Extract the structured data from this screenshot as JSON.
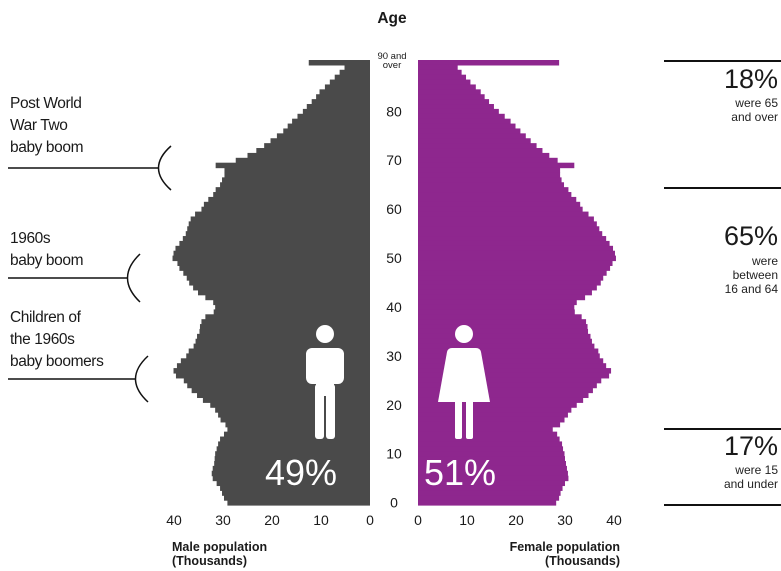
{
  "chart_data": {
    "type": "bar",
    "orientation": "horizontal",
    "title": "Age",
    "age_top_label": "90 and over",
    "y_ticks": [
      "0",
      "10",
      "20",
      "30",
      "40",
      "50",
      "60",
      "70",
      "80"
    ],
    "ages": [
      90,
      89,
      88,
      87,
      86,
      85,
      84,
      83,
      82,
      81,
      80,
      79,
      78,
      77,
      76,
      75,
      74,
      73,
      72,
      71,
      70,
      69,
      68,
      67,
      66,
      65,
      64,
      63,
      62,
      61,
      60,
      59,
      58,
      57,
      56,
      55,
      54,
      53,
      52,
      51,
      50,
      49,
      48,
      47,
      46,
      45,
      44,
      43,
      42,
      41,
      40,
      39,
      38,
      37,
      36,
      35,
      34,
      33,
      32,
      31,
      30,
      29,
      28,
      27,
      26,
      25,
      24,
      23,
      22,
      21,
      20,
      19,
      18,
      17,
      16,
      15,
      14,
      13,
      12,
      11,
      10,
      9,
      8,
      7,
      6,
      5,
      4,
      3,
      2,
      1,
      0
    ],
    "series": [
      {
        "name": "Male population (Thousands)",
        "color": "#4a4a4a",
        "values": [
          12.5,
          5.2,
          6.2,
          7.2,
          8.2,
          9.2,
          10.3,
          11.0,
          11.9,
          12.9,
          13.7,
          14.8,
          15.9,
          16.8,
          17.7,
          19.0,
          20.3,
          21.6,
          23.2,
          25.0,
          27.4,
          31.5,
          29.7,
          29.7,
          30.2,
          30.6,
          31.5,
          32.0,
          33.0,
          33.9,
          34.4,
          35.7,
          36.6,
          37.0,
          37.3,
          37.6,
          38.2,
          38.9,
          39.7,
          40.1,
          40.3,
          39.3,
          38.9,
          38.1,
          37.4,
          36.9,
          36.1,
          35.1,
          33.6,
          32.0,
          31.6,
          31.9,
          33.6,
          34.4,
          34.7,
          34.8,
          35.3,
          35.6,
          36.0,
          37.0,
          37.5,
          38.6,
          39.4,
          40.1,
          39.6,
          38.0,
          37.3,
          36.4,
          35.3,
          34.1,
          32.6,
          31.6,
          31.0,
          30.5,
          29.5,
          29.1,
          29.8,
          30.6,
          31.0,
          31.3,
          31.6,
          31.7,
          31.8,
          32.1,
          32.3,
          32.1,
          31.3,
          30.6,
          30.2,
          29.8,
          29.1
        ]
      },
      {
        "name": "Female population (Thousands)",
        "color": "#8e278e",
        "values": [
          28.8,
          8.1,
          8.9,
          9.8,
          10.7,
          11.8,
          12.8,
          13.6,
          14.5,
          15.5,
          16.5,
          17.7,
          18.9,
          19.9,
          20.9,
          22.0,
          23.0,
          24.2,
          25.4,
          26.8,
          28.5,
          31.9,
          29.0,
          29.0,
          29.3,
          29.8,
          30.7,
          31.3,
          32.3,
          33.1,
          33.6,
          34.8,
          35.9,
          36.5,
          37.0,
          37.6,
          38.4,
          39.1,
          39.8,
          40.2,
          40.4,
          39.7,
          39.2,
          38.5,
          37.8,
          37.3,
          36.5,
          35.5,
          34.1,
          32.4,
          31.9,
          32.0,
          33.4,
          34.3,
          34.6,
          34.7,
          35.2,
          35.5,
          36.0,
          36.8,
          37.1,
          37.8,
          38.4,
          39.4,
          39.0,
          37.4,
          36.5,
          35.7,
          34.8,
          33.7,
          32.4,
          31.3,
          30.6,
          29.9,
          29.0,
          27.5,
          28.4,
          28.9,
          29.4,
          29.6,
          29.9,
          30.0,
          30.2,
          30.4,
          30.6,
          30.7,
          30.0,
          29.5,
          29.1,
          28.8,
          28.2
        ]
      }
    ],
    "xlim": [
      0,
      40
    ],
    "x_ticks_male": [
      "40",
      "30",
      "20",
      "10",
      "0"
    ],
    "x_ticks_female": [
      "0",
      "10",
      "20",
      "30",
      "40"
    ],
    "xlabel_male": [
      "Male population",
      "(Thousands)"
    ],
    "xlabel_female": [
      "Female population",
      "(Thousands)"
    ]
  },
  "overlays": {
    "male_percent": "49%",
    "female_percent": "51%",
    "male_icon": "man-icon",
    "female_icon": "woman-icon"
  },
  "annotations": [
    {
      "lines": [
        "Post World",
        "War Two",
        "baby boom"
      ]
    },
    {
      "lines": [
        "1960s",
        "baby boom"
      ]
    },
    {
      "lines": [
        "Children of",
        "the 1960s",
        "baby boomers"
      ]
    }
  ],
  "stats": [
    {
      "percent": "18%",
      "lines": [
        "were 65",
        "and over"
      ]
    },
    {
      "percent": "65%",
      "lines": [
        "were",
        "between",
        "16 and 64"
      ]
    },
    {
      "percent": "17%",
      "lines": [
        "were 15",
        "and under"
      ]
    }
  ]
}
